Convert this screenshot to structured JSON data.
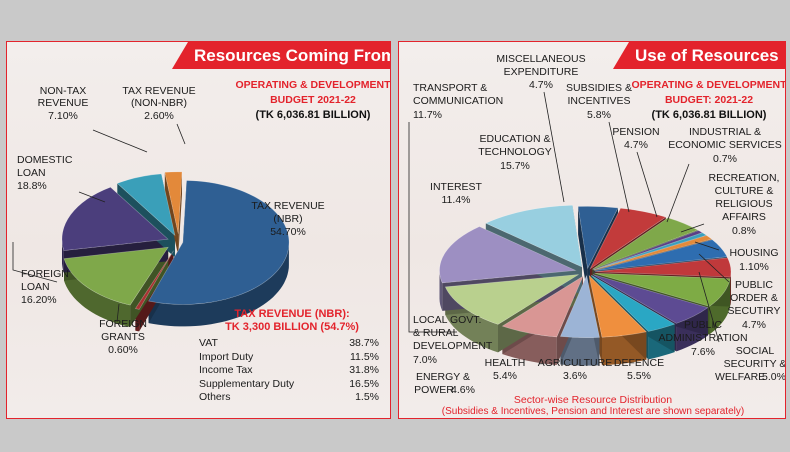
{
  "left": {
    "banner": "Resources Coming From",
    "budget_line1": "OPERATING & DEVELOPMENT",
    "budget_line2": "BUDGET 2021-22",
    "budget_total": "(TK 6,036.81 BILLION)",
    "tax_breakdown_title1": "TAX REVENUE (NBR):",
    "tax_breakdown_title2": "TK 3,300 BILLION (54.7%)",
    "tax_breakdown": [
      {
        "name": "VAT",
        "value": "38.7%"
      },
      {
        "name": "Import Duty",
        "value": "11.5%"
      },
      {
        "name": "Income Tax",
        "value": "31.8%"
      },
      {
        "name": "Supplementary Duty",
        "value": "16.5%"
      },
      {
        "name": "Others",
        "value": "1.5%"
      }
    ]
  },
  "right": {
    "banner": "Use of Resources",
    "budget_line1": "OPERATING & DEVELOPMENT",
    "budget_line2": "BUDGET: 2021-22",
    "budget_total": "(TK 6,036.81 BILLION)",
    "footnote_line1": "Sector-wise Resource Distribution",
    "footnote_line2": "(Subsidies & Incentives, Pension and Interest are shown separately)"
  },
  "chart_data": [
    {
      "type": "pie",
      "title": "Resources Coming From",
      "subtitle": "OPERATING & DEVELOPMENT BUDGET 2021-22 (TK 6,036.81 BILLION)",
      "slices": [
        {
          "name": "TAX REVENUE (NBR)",
          "value": 54.7,
          "label": "54.70%",
          "color": "#2f5f93"
        },
        {
          "name": "FOREIGN GRANTS",
          "value": 0.6,
          "label": "0.60%",
          "color": "#a83232"
        },
        {
          "name": "FOREIGN LOAN",
          "value": 16.2,
          "label": "16.20%",
          "color": "#7fa84a"
        },
        {
          "name": "DOMESTIC LOAN",
          "value": 18.8,
          "label": "18.8%",
          "color": "#4b3e7c"
        },
        {
          "name": "NON-TAX REVENUE",
          "value": 7.1,
          "label": "7.10%",
          "color": "#3a9fb9"
        },
        {
          "name": "TAX REVENUE (NON-NBR)",
          "value": 2.6,
          "label": "2.60%",
          "color": "#e3893a"
        }
      ]
    },
    {
      "type": "pie",
      "title": "Use of Resources",
      "subtitle": "OPERATING & DEVELOPMENT BUDGET: 2021-22 (TK 6,036.81 BILLION)",
      "slices": [
        {
          "name": "MISCELLANEOUS EXPENDITURE",
          "value": 4.7,
          "label": "4.7%",
          "color": "#2f5f93"
        },
        {
          "name": "SUBSIDIES & INCENTIVES",
          "value": 5.8,
          "label": "5.8%",
          "color": "#c23b3b"
        },
        {
          "name": "PENSION",
          "value": 4.7,
          "label": "4.7%",
          "color": "#7fa84a"
        },
        {
          "name": "INDUSTRIAL & ECONOMIC SERVICES",
          "value": 0.7,
          "label": "0.7%",
          "color": "#5a3f86"
        },
        {
          "name": "RECREATION, CULTURE & RELIGIOUS AFFAIRS",
          "value": 0.8,
          "label": "0.8%",
          "color": "#3aa0bd"
        },
        {
          "name": "HOUSING",
          "value": 1.1,
          "label": "1.10%",
          "color": "#e38a3a"
        },
        {
          "name": "PUBLIC ORDER & SECUTIRY",
          "value": 4.7,
          "label": "4.7%",
          "color": "#2e6db0"
        },
        {
          "name": "SOCIAL SECURITY & WELFARE",
          "value": 5.0,
          "label": "5.0%",
          "color": "#c0393b"
        },
        {
          "name": "PUBLIC ADMINISTRATION",
          "value": 7.6,
          "label": "7.6%",
          "color": "#7eab45"
        },
        {
          "name": "DEFENCE",
          "value": 5.5,
          "label": "5.5%",
          "color": "#5d4b93"
        },
        {
          "name": "AGRICULTURE",
          "value": 3.6,
          "label": "3.6%",
          "color": "#2aa7c4"
        },
        {
          "name": "HEALTH",
          "value": 5.4,
          "label": "5.4%",
          "color": "#ef8f3e"
        },
        {
          "name": "ENERGY & POWER",
          "value": 4.6,
          "label": "4.6%",
          "color": "#9cb4d6"
        },
        {
          "name": "LOCAL GOVT. & RURAL DEVELOPMENT",
          "value": 7.0,
          "label": "7.0%",
          "color": "#d99694"
        },
        {
          "name": "TRANSPORT & COMMUNICATION",
          "value": 11.7,
          "label": "11.7%",
          "color": "#b9d08e"
        },
        {
          "name": "EDUCATION & TECHNOLOGY",
          "value": 15.7,
          "label": "15.7%",
          "color": "#9d8fc2"
        },
        {
          "name": "INTEREST",
          "value": 11.4,
          "label": "11.4%",
          "color": "#98cfe0"
        }
      ]
    }
  ]
}
